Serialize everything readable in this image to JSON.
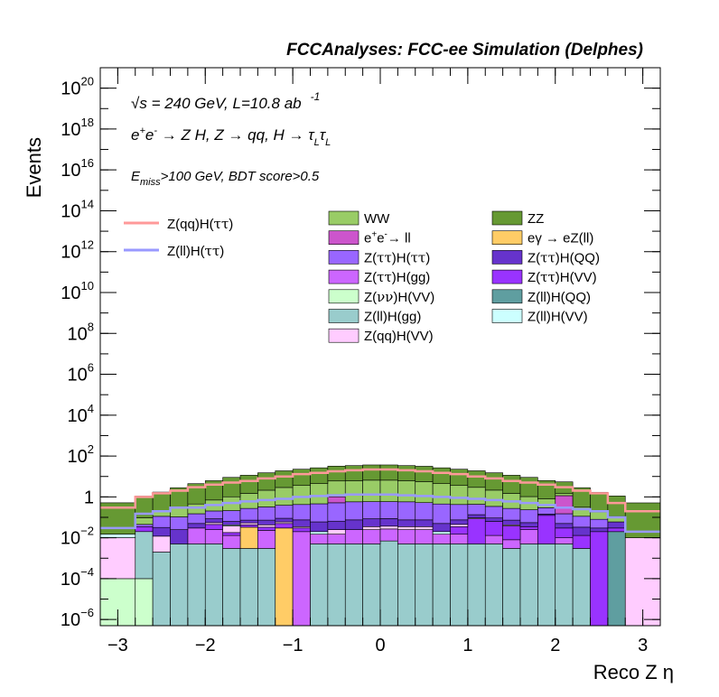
{
  "chart_data": {
    "type": "area",
    "title": "FCCAnalyses: FCC-ee Simulation (Delphes)",
    "xlabel": "Reco Z η",
    "ylabel": "Events",
    "xlim": [
      -3.2,
      3.2
    ],
    "ylim": [
      5e-07,
      1e+21
    ],
    "yscale": "log",
    "grid": false,
    "legend_position": "top-center",
    "x_ticks": [
      -3,
      -2,
      -1,
      0,
      1,
      2,
      3
    ],
    "y_ticks": [
      {
        "value": 1e-06,
        "base": "10",
        "exp": "−6"
      },
      {
        "value": 0.0001,
        "base": "10",
        "exp": "−4"
      },
      {
        "value": 0.01,
        "base": "10",
        "exp": "−2"
      },
      {
        "value": 1,
        "base": "1",
        "exp": ""
      },
      {
        "value": 100.0,
        "base": "10",
        "exp": "2"
      },
      {
        "value": 10000.0,
        "base": "10",
        "exp": "4"
      },
      {
        "value": 1000000.0,
        "base": "10",
        "exp": "6"
      },
      {
        "value": 100000000.0,
        "base": "10",
        "exp": "8"
      },
      {
        "value": 10000000000.0,
        "base": "10",
        "exp": "10"
      },
      {
        "value": 1000000000000.0,
        "base": "10",
        "exp": "12"
      },
      {
        "value": 100000000000000.0,
        "base": "10",
        "exp": "14"
      },
      {
        "value": 1e+16,
        "base": "10",
        "exp": "16"
      },
      {
        "value": 1e+18,
        "base": "10",
        "exp": "18"
      },
      {
        "value": 1e+20,
        "base": "10",
        "exp": "20"
      }
    ],
    "annotations": {
      "line1_sqrt": "√s",
      "line1_rest": " = 240 GeV, L=10.8 ab",
      "line1_sup": "-1",
      "line2_a": "e",
      "line2_sup1": "+",
      "line2_b": "e",
      "line2_sup2": "-",
      "line2_c": " → Z H, Z  → qq, H  →  τ",
      "line2_sub1": "L",
      "line2_d": "τ",
      "line2_sub2": "L",
      "line3_a": "E",
      "line3_sub": "miss",
      "line3_b": ">100 GeV, BDT score>0.5"
    },
    "bin_edges": [
      -3.2,
      -2.8,
      -2.6,
      -2.4,
      -2.2,
      -2.0,
      -1.8,
      -1.6,
      -1.4,
      -1.2,
      -1.0,
      -0.8,
      -0.6,
      -0.4,
      -0.2,
      0.0,
      0.2,
      0.4,
      0.6,
      0.8,
      1.0,
      1.2,
      1.4,
      1.6,
      1.8,
      2.0,
      2.2,
      2.4,
      2.6,
      2.8,
      3.2
    ],
    "stack_series": [
      {
        "name": "Z(νν)H(VV)",
        "label_parts": [
          "Z(",
          "νν",
          ")H(VV)"
        ],
        "color": "#ccffcc",
        "values": [
          0.0001,
          0.0001,
          0,
          0,
          0,
          0,
          0,
          0,
          0,
          0,
          0,
          0,
          0,
          0,
          0,
          0,
          0,
          0,
          0,
          0,
          0,
          0,
          0,
          0,
          0,
          0,
          0,
          0,
          0,
          0
        ]
      },
      {
        "name": "Z(ll)H(gg)",
        "label_parts": [
          "Z(ll)H(gg)"
        ],
        "color": "#99cccc",
        "values": [
          0,
          0.02,
          0.002,
          0.005,
          0.005,
          0.005,
          0.003,
          0.003,
          0.003,
          0,
          0,
          0.005,
          0.005,
          0.005,
          0.005,
          0.007,
          0.005,
          0.005,
          0.005,
          0.005,
          0.005,
          0.005,
          0.003,
          0.005,
          0.005,
          0.005,
          0.003,
          0,
          0,
          0
        ]
      },
      {
        "name": "Z(ll)H(QQ)",
        "label_parts": [
          "Z(ll)H(QQ)"
        ],
        "color": "#5f9ea0",
        "values": [
          0,
          0,
          0,
          0,
          0,
          0,
          0,
          0,
          0,
          0,
          0,
          0,
          0,
          0,
          0,
          0,
          0,
          0,
          0,
          0,
          0,
          0,
          0,
          0,
          0,
          0,
          0,
          0,
          0.02,
          0
        ]
      },
      {
        "name": "eγ → eZ(ll)",
        "label_parts": [
          "eγ → eZ(ll)"
        ],
        "color": "#ffcc66",
        "values": [
          0,
          0,
          0,
          0,
          0,
          0,
          0,
          0.03,
          0,
          0.03,
          0,
          0,
          0,
          0,
          0,
          0,
          0,
          0,
          0,
          0,
          0,
          0,
          0,
          0,
          0,
          0,
          0,
          0,
          0,
          0
        ]
      },
      {
        "name": "Z(ττ)H(gg)",
        "label_parts": [
          "Z(",
          "ττ",
          ")H(gg)"
        ],
        "color": "#cc66ff",
        "values": [
          0,
          0,
          0,
          0,
          0.025,
          0.02,
          0.01,
          0,
          0.02,
          0,
          0.02,
          0.01,
          0.01,
          0.02,
          0.02,
          0.02,
          0.02,
          0.02,
          0.01,
          0.01,
          0,
          0.008,
          0.005,
          0.02,
          0,
          0.005,
          0,
          0,
          0,
          0
        ]
      },
      {
        "name": "Z(ττ)H(VV)",
        "label_parts": [
          "Z(",
          "ττ",
          ")H(VV)"
        ],
        "color": "#9933ff",
        "values": [
          0,
          0.015,
          0,
          0,
          0,
          0.02,
          0.005,
          0.01,
          0.01,
          0.02,
          0.01,
          0,
          0,
          0,
          0,
          0,
          0,
          0,
          0,
          0.02,
          0.08,
          0.05,
          0.03,
          0.01,
          0.12,
          0.02,
          0.01,
          0.02,
          0.01,
          0
        ]
      },
      {
        "name": "Z(qq)H(VV)",
        "label_parts": [
          "Z(qq)H(VV)"
        ],
        "color": "#ffccff",
        "values": [
          0.01,
          0,
          0.01,
          0,
          0,
          0.01,
          0.02,
          0.01,
          0.01,
          0.01,
          0.005,
          0,
          0.01,
          0,
          0.01,
          0.01,
          0.01,
          0.01,
          0,
          0.01,
          0.01,
          0,
          0.005,
          0,
          0,
          0,
          0,
          0,
          0,
          0.01
        ]
      },
      {
        "name": "Z(ll)H(VV)",
        "label_parts": [
          "Z(ll)H(VV)"
        ],
        "color": "#ccffff",
        "values": [
          0.005,
          0,
          0,
          0,
          0,
          0,
          0.005,
          0,
          0,
          0,
          0,
          0.005,
          0,
          0,
          0,
          0,
          0,
          0,
          0.005,
          0,
          0,
          0,
          0,
          0,
          0,
          0,
          0,
          0,
          0,
          0
        ]
      },
      {
        "name": "Z(ττ)H(QQ)",
        "label_parts": [
          "Z(",
          "ττ",
          ")H(QQ)"
        ],
        "color": "#6633cc",
        "values": [
          0,
          0,
          0.02,
          0.02,
          0.02,
          0.03,
          0.02,
          0.02,
          0.03,
          0.03,
          0.04,
          0.04,
          0.04,
          0.05,
          0.05,
          0.05,
          0.04,
          0.04,
          0.03,
          0.03,
          0.04,
          0.03,
          0.03,
          0.02,
          0.02,
          0.02,
          0.02,
          0.01,
          0.03,
          0
        ]
      },
      {
        "name": "Z(ττ)H(ττ)",
        "label_parts": [
          "Z(",
          "ττ",
          ")H(",
          "ττ",
          ")"
        ],
        "color": "#9966ff",
        "values": [
          0,
          0.01,
          0.08,
          0.08,
          0.1,
          0.12,
          0.15,
          0.2,
          0.25,
          0.3,
          0.35,
          0.4,
          0.45,
          0.5,
          0.5,
          0.5,
          0.5,
          0.45,
          0.4,
          0.35,
          0.3,
          0.25,
          0.2,
          0.18,
          0.15,
          0.1,
          0.08,
          0.05,
          0,
          0
        ]
      },
      {
        "name": "e+e-→ ll",
        "label_parts": [
          "e",
          "+",
          "e",
          "-",
          "→ ll"
        ],
        "color": "#cc55cc",
        "values": [
          0,
          0,
          0,
          0,
          0,
          0,
          0,
          0,
          0,
          0,
          0,
          0,
          0.5,
          0,
          0,
          0,
          0,
          0,
          0,
          0,
          0,
          0,
          0,
          0,
          0,
          1.0,
          0,
          0,
          0,
          0
        ]
      },
      {
        "name": "WW",
        "label_parts": [
          "WW"
        ],
        "color": "#99cc66",
        "values": [
          0,
          0.05,
          0.1,
          0.2,
          0.3,
          0.5,
          0.8,
          1.2,
          1.8,
          2.5,
          3.2,
          4,
          5,
          5.5,
          6,
          6,
          5.5,
          5,
          4,
          3.2,
          2.5,
          1.8,
          1.2,
          0.8,
          0.5,
          0.3,
          0.2,
          0.1,
          0.05,
          0
        ]
      },
      {
        "name": "ZZ",
        "label_parts": [
          "ZZ"
        ],
        "color": "#669933",
        "values": [
          0.5,
          1,
          1.5,
          2.5,
          4,
          5.5,
          8,
          10,
          13,
          16,
          19,
          22,
          26,
          28,
          30,
          30,
          28,
          26,
          22,
          19,
          16,
          13,
          10,
          8,
          5.5,
          4,
          2.5,
          1.5,
          1,
          0.5
        ]
      }
    ],
    "line_series": [
      {
        "name": "Z(qq)H(ττ)",
        "label_parts": [
          "Z(qq)H(",
          "ττ",
          ")"
        ],
        "color": "#ff9999",
        "values": [
          0.3,
          1,
          1.5,
          2,
          3,
          4,
          5,
          6,
          8,
          10,
          13,
          15,
          18,
          20,
          22,
          22,
          20,
          18,
          15,
          13,
          10,
          8,
          6,
          5,
          4,
          3,
          2,
          1.5,
          0.5,
          0.2
        ]
      },
      {
        "name": "Z(ll)H(ττ)",
        "label_parts": [
          "Z(ll)H(",
          "ττ",
          ")"
        ],
        "color": "#9999ff",
        "values": [
          0.03,
          0.15,
          0.2,
          0.3,
          0.3,
          0.4,
          0.5,
          0.6,
          0.7,
          0.8,
          1.0,
          1.1,
          1.2,
          1.3,
          1.3,
          1.3,
          1.2,
          1.1,
          1.0,
          0.9,
          0.8,
          0.7,
          0.6,
          0.5,
          0.4,
          0.3,
          0.25,
          0.2,
          0.1,
          0.02
        ]
      }
    ],
    "legend_left": [
      "Z(qq)H(ττ)",
      "Z(ll)H(ττ)"
    ],
    "legend_mid": [
      "WW",
      "e+e-→ ll",
      "Z(ττ)H(ττ)",
      "Z(ττ)H(gg)",
      "Z(νν)H(VV)",
      "Z(ll)H(gg)",
      "Z(qq)H(VV)"
    ],
    "legend_right": [
      "ZZ",
      "eγ → eZ(ll)",
      "Z(ττ)H(QQ)",
      "Z(ττ)H(VV)",
      "Z(ll)H(QQ)",
      "Z(ll)H(VV)"
    ]
  }
}
